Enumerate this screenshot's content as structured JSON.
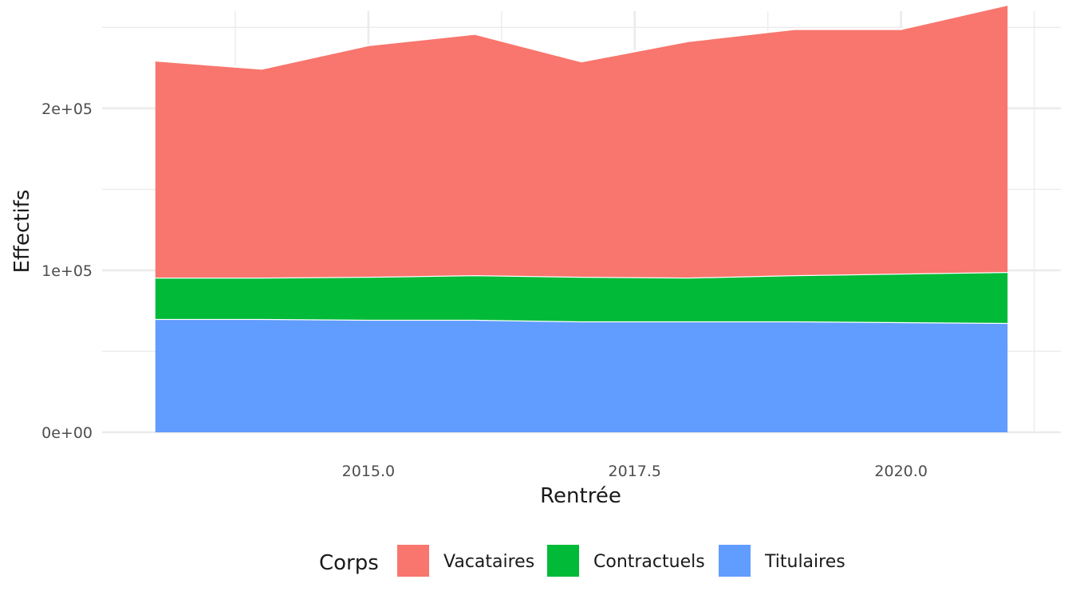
{
  "chart_data": {
    "type": "area",
    "stacked": true,
    "title": "",
    "xlabel": "Rentrée",
    "ylabel": "Effectifs",
    "x": [
      2013,
      2014,
      2015,
      2016,
      2017,
      2018,
      2019,
      2020,
      2021
    ],
    "xlim": [
      2012.5,
      2021.5
    ],
    "ylim": [
      0,
      260000
    ],
    "x_ticks": [
      2015.0,
      2017.5,
      2020.0
    ],
    "x_tick_labels": [
      "2015.0",
      "2017.5",
      "2020.0"
    ],
    "y_ticks": [
      0,
      100000,
      200000
    ],
    "y_tick_labels": [
      "0e+00",
      "1e+05",
      "2e+05"
    ],
    "grid": true,
    "series": [
      {
        "name": "Titulaires",
        "color": "#619CFF",
        "values": [
          70000,
          70000,
          69500,
          69500,
          68500,
          68500,
          68500,
          68000,
          67500
        ]
      },
      {
        "name": "Contractuels",
        "color": "#00BA38",
        "values": [
          25500,
          25500,
          26500,
          27500,
          27500,
          27000,
          28500,
          30000,
          31500
        ]
      },
      {
        "name": "Vacataires",
        "color": "#F8766D",
        "values": [
          134000,
          129000,
          143000,
          149000,
          133000,
          146000,
          152000,
          151000,
          165000
        ]
      }
    ],
    "legend": {
      "position": "bottom",
      "title": "Corps",
      "order": [
        "Vacataires",
        "Contractuels",
        "Titulaires"
      ]
    }
  }
}
